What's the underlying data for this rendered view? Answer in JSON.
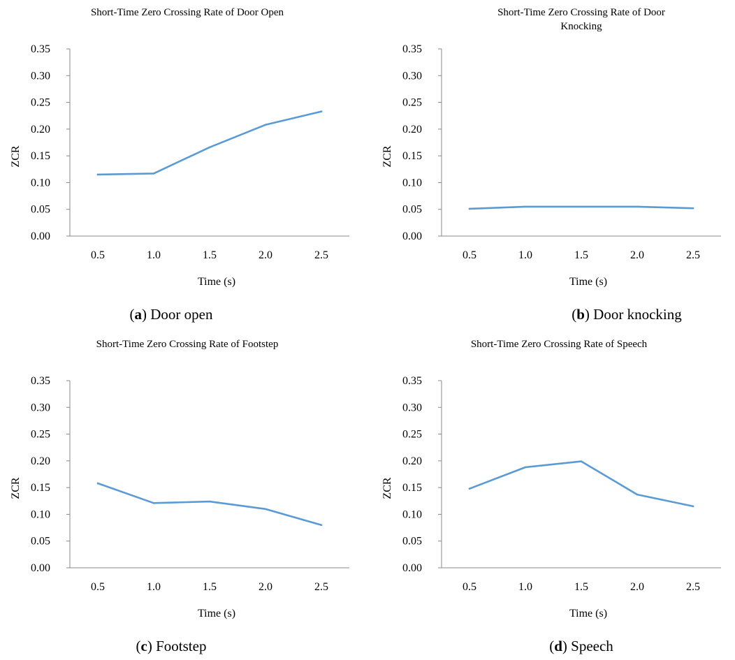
{
  "chart_data": [
    {
      "type": "line",
      "title": "Short-Time Zero Crossing Rate of Door Open",
      "xlabel": "Time (s)",
      "ylabel": "ZCR",
      "ylim": [
        0,
        0.35
      ],
      "x": [
        "0.5",
        "1.0",
        "1.5",
        "2.0",
        "2.5"
      ],
      "yticks": [
        "0.00",
        "0.05",
        "0.10",
        "0.15",
        "0.20",
        "0.25",
        "0.30",
        "0.35"
      ],
      "series": [
        {
          "values": [
            0.115,
            0.117,
            0.166,
            0.208,
            0.233
          ],
          "color": "#5b9bd5"
        }
      ],
      "caption": {
        "letter": "a",
        "text": "Door open"
      }
    },
    {
      "type": "line",
      "title": "Short-Time Zero Crossing Rate of Door Knocking",
      "xlabel": "Time (s)",
      "ylabel": "ZCR",
      "ylim": [
        0,
        0.35
      ],
      "x": [
        "0.5",
        "1.0",
        "1.5",
        "2.0",
        "2.5"
      ],
      "yticks": [
        "0.00",
        "0.05",
        "0.10",
        "0.15",
        "0.20",
        "0.25",
        "0.30",
        "0.35"
      ],
      "series": [
        {
          "values": [
            0.051,
            0.055,
            0.055,
            0.055,
            0.052
          ],
          "color": "#5b9bd5"
        }
      ],
      "caption": {
        "letter": "b",
        "text": "Door knocking"
      }
    },
    {
      "type": "line",
      "title": "Short-Time Zero Crossing Rate of Footstep",
      "xlabel": "Time (s)",
      "ylabel": "ZCR",
      "ylim": [
        0,
        0.35
      ],
      "x": [
        "0.5",
        "1.0",
        "1.5",
        "2.0",
        "2.5"
      ],
      "yticks": [
        "0.00",
        "0.05",
        "0.10",
        "0.15",
        "0.20",
        "0.25",
        "0.30",
        "0.35"
      ],
      "series": [
        {
          "values": [
            0.158,
            0.121,
            0.124,
            0.11,
            0.08
          ],
          "color": "#5b9bd5"
        }
      ],
      "caption": {
        "letter": "c",
        "text": "Footstep"
      }
    },
    {
      "type": "line",
      "title": "Short-Time Zero Crossing Rate of Speech",
      "xlabel": "Time (s)",
      "ylabel": "ZCR",
      "ylim": [
        0,
        0.35
      ],
      "x": [
        "0.5",
        "1.0",
        "1.5",
        "2.0",
        "2.5"
      ],
      "yticks": [
        "0.00",
        "0.05",
        "0.10",
        "0.15",
        "0.20",
        "0.25",
        "0.30",
        "0.35"
      ],
      "series": [
        {
          "values": [
            0.148,
            0.188,
            0.199,
            0.137,
            0.115
          ],
          "color": "#5b9bd5"
        }
      ],
      "caption": {
        "letter": "d",
        "text": "Speech"
      }
    }
  ]
}
